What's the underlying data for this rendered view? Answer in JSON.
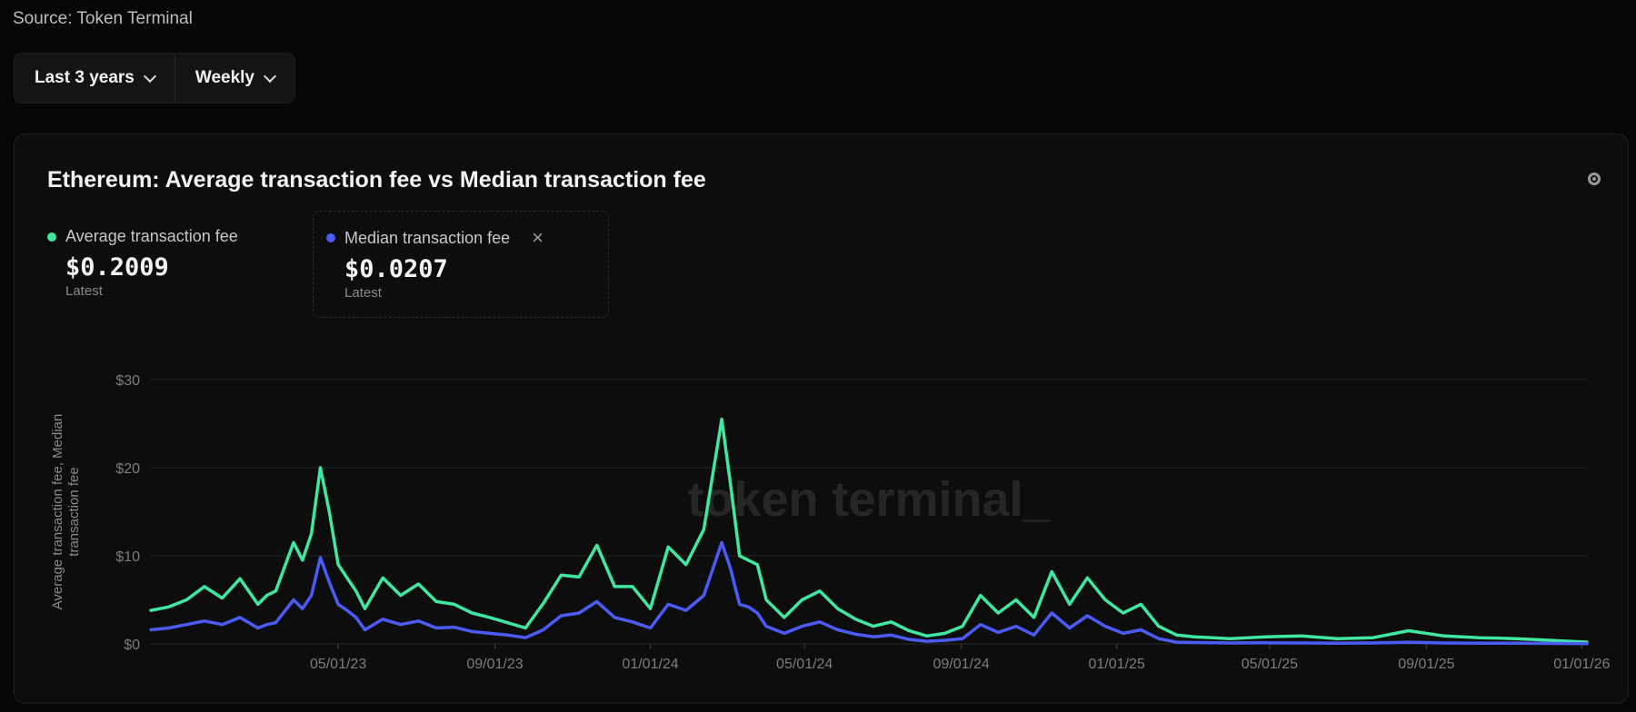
{
  "source": "Source: Token Terminal",
  "controls": {
    "range": "Last 3 years",
    "interval": "Weekly"
  },
  "icons": {
    "chevron": "chevron-down-icon",
    "settings": "settings-icon",
    "close": "close-icon"
  },
  "card": {
    "title": "Ethereum: Average transaction fee vs Median transaction fee"
  },
  "legend": [
    {
      "label": "Average transaction fee",
      "value": "$0.2009",
      "sub": "Latest",
      "color": "#3ee8a0"
    },
    {
      "label": "Median transaction fee",
      "value": "$0.0207",
      "sub": "Latest",
      "color": "#4a5cf5"
    }
  ],
  "watermark": "token terminal_",
  "chart_data": {
    "type": "line",
    "ylabel": "Average transaction fee, Median transaction fee",
    "ylim": [
      0,
      30
    ],
    "yticks": [
      0,
      10,
      20,
      30
    ],
    "ytick_labels": [
      "$0",
      "$10",
      "$20",
      "$30"
    ],
    "xlim": [
      "2022-12-05",
      "2026-01-05"
    ],
    "xticks": [
      "2023-05-01",
      "2023-09-01",
      "2024-01-01",
      "2024-05-01",
      "2024-09-01",
      "2025-01-01",
      "2025-05-01",
      "2025-09-01",
      "2026-01-01"
    ],
    "xtick_labels": [
      "05/01/23",
      "09/01/23",
      "01/01/24",
      "05/01/24",
      "09/01/24",
      "01/01/25",
      "05/01/25",
      "09/01/25",
      "01/01/26"
    ],
    "grid": true,
    "series": [
      {
        "name": "Average transaction fee",
        "color": "#3ee8a0",
        "x": [
          "2022-12-05",
          "2022-12-19",
          "2023-01-02",
          "2023-01-16",
          "2023-01-30",
          "2023-02-13",
          "2023-02-27",
          "2023-03-06",
          "2023-03-13",
          "2023-03-27",
          "2023-04-03",
          "2023-04-10",
          "2023-04-17",
          "2023-04-24",
          "2023-05-01",
          "2023-05-08",
          "2023-05-15",
          "2023-05-22",
          "2023-06-05",
          "2023-06-19",
          "2023-07-03",
          "2023-07-17",
          "2023-07-31",
          "2023-08-14",
          "2023-08-28",
          "2023-09-11",
          "2023-09-25",
          "2023-10-09",
          "2023-10-23",
          "2023-11-06",
          "2023-11-20",
          "2023-12-04",
          "2023-12-18",
          "2024-01-01",
          "2024-01-15",
          "2024-01-29",
          "2024-02-12",
          "2024-02-26",
          "2024-03-04",
          "2024-03-11",
          "2024-03-18",
          "2024-03-25",
          "2024-04-01",
          "2024-04-15",
          "2024-04-29",
          "2024-05-13",
          "2024-05-27",
          "2024-06-10",
          "2024-06-24",
          "2024-07-08",
          "2024-07-22",
          "2024-08-05",
          "2024-08-19",
          "2024-09-02",
          "2024-09-16",
          "2024-09-30",
          "2024-10-14",
          "2024-10-28",
          "2024-11-11",
          "2024-11-25",
          "2024-12-09",
          "2024-12-23",
          "2025-01-06",
          "2025-01-20",
          "2025-02-03",
          "2025-02-17",
          "2025-03-03",
          "2025-03-31",
          "2025-04-28",
          "2025-05-26",
          "2025-06-23",
          "2025-07-21",
          "2025-08-18",
          "2025-09-15",
          "2025-10-13",
          "2025-11-10",
          "2025-12-08",
          "2026-01-05"
        ],
        "y": [
          3.8,
          4.2,
          5.0,
          6.5,
          5.2,
          7.4,
          4.5,
          5.5,
          6.0,
          11.5,
          9.5,
          12.5,
          20.0,
          15.0,
          9.0,
          7.5,
          6.0,
          4.0,
          7.5,
          5.5,
          6.8,
          4.8,
          4.5,
          3.5,
          3.0,
          2.4,
          1.8,
          4.6,
          7.8,
          7.6,
          11.2,
          6.5,
          6.5,
          4.0,
          11.0,
          9.0,
          13.0,
          25.5,
          18.0,
          10.0,
          9.5,
          9.0,
          5.0,
          3.0,
          5.0,
          6.0,
          4.0,
          2.8,
          2.0,
          2.5,
          1.5,
          0.9,
          1.2,
          2.0,
          5.5,
          3.5,
          5.0,
          3.0,
          8.2,
          4.5,
          7.5,
          5.0,
          3.5,
          4.5,
          2.0,
          1.0,
          0.8,
          0.6,
          0.8,
          0.9,
          0.6,
          0.7,
          1.5,
          0.9,
          0.7,
          0.6,
          0.4,
          0.2
        ]
      },
      {
        "name": "Median transaction fee",
        "color": "#4a5cf5",
        "x": [
          "2022-12-05",
          "2022-12-19",
          "2023-01-02",
          "2023-01-16",
          "2023-01-30",
          "2023-02-13",
          "2023-02-27",
          "2023-03-06",
          "2023-03-13",
          "2023-03-27",
          "2023-04-03",
          "2023-04-10",
          "2023-04-17",
          "2023-04-24",
          "2023-05-01",
          "2023-05-08",
          "2023-05-15",
          "2023-05-22",
          "2023-06-05",
          "2023-06-19",
          "2023-07-03",
          "2023-07-17",
          "2023-07-31",
          "2023-08-14",
          "2023-08-28",
          "2023-09-11",
          "2023-09-25",
          "2023-10-09",
          "2023-10-23",
          "2023-11-06",
          "2023-11-20",
          "2023-12-04",
          "2023-12-18",
          "2024-01-01",
          "2024-01-15",
          "2024-01-29",
          "2024-02-12",
          "2024-02-26",
          "2024-03-04",
          "2024-03-11",
          "2024-03-18",
          "2024-03-25",
          "2024-04-01",
          "2024-04-15",
          "2024-04-29",
          "2024-05-13",
          "2024-05-27",
          "2024-06-10",
          "2024-06-24",
          "2024-07-08",
          "2024-07-22",
          "2024-08-05",
          "2024-08-19",
          "2024-09-02",
          "2024-09-16",
          "2024-09-30",
          "2024-10-14",
          "2024-10-28",
          "2024-11-11",
          "2024-11-25",
          "2024-12-09",
          "2024-12-23",
          "2025-01-06",
          "2025-01-20",
          "2025-02-03",
          "2025-02-17",
          "2025-03-03",
          "2025-03-31",
          "2025-04-28",
          "2025-05-26",
          "2025-06-23",
          "2025-07-21",
          "2025-08-18",
          "2025-09-15",
          "2025-10-13",
          "2025-11-10",
          "2025-12-08",
          "2026-01-05"
        ],
        "y": [
          1.6,
          1.8,
          2.2,
          2.6,
          2.2,
          3.0,
          1.8,
          2.2,
          2.4,
          5.0,
          4.0,
          5.5,
          9.8,
          7.0,
          4.5,
          3.8,
          3.0,
          1.6,
          2.8,
          2.2,
          2.6,
          1.8,
          1.9,
          1.4,
          1.2,
          1.0,
          0.7,
          1.6,
          3.2,
          3.5,
          4.8,
          3.0,
          2.5,
          1.8,
          4.5,
          3.8,
          5.5,
          11.5,
          8.5,
          4.5,
          4.2,
          3.5,
          2.0,
          1.2,
          2.0,
          2.5,
          1.6,
          1.1,
          0.8,
          1.0,
          0.5,
          0.3,
          0.4,
          0.6,
          2.2,
          1.3,
          2.0,
          1.0,
          3.5,
          1.8,
          3.2,
          2.0,
          1.2,
          1.6,
          0.6,
          0.2,
          0.15,
          0.1,
          0.12,
          0.1,
          0.08,
          0.1,
          0.2,
          0.1,
          0.08,
          0.07,
          0.05,
          0.02
        ]
      }
    ]
  }
}
